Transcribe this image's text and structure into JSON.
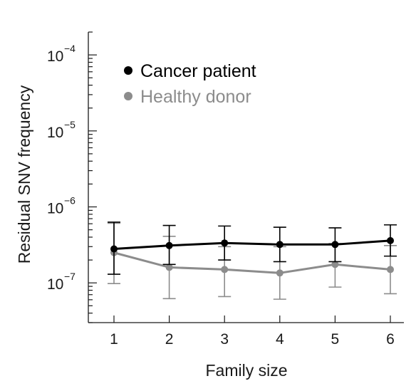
{
  "chart_data": {
    "type": "line",
    "xlabel": "Family size",
    "ylabel": "Residual SNV frequency",
    "y_scale": "log",
    "ylim": [
      3e-08,
      0.0002
    ],
    "x": [
      1,
      2,
      3,
      4,
      5,
      6
    ],
    "xlim": [
      0.5,
      6.5
    ],
    "y_ticks": [
      {
        "base": "10",
        "exp": "−7",
        "value": 1e-07
      },
      {
        "base": "10",
        "exp": "−6",
        "value": 1e-06
      },
      {
        "base": "10",
        "exp": "−5",
        "value": 1e-05
      },
      {
        "base": "10",
        "exp": "−4",
        "value": 0.0001
      }
    ],
    "legend_position": "top-left",
    "grid": false,
    "series": [
      {
        "name": "Cancer patient",
        "color": "#000000",
        "values": [
          2.8e-07,
          3.1e-07,
          3.35e-07,
          3.2e-07,
          3.2e-07,
          3.6e-07
        ],
        "err_low": [
          1.3e-07,
          1.75e-07,
          2e-07,
          1.9e-07,
          1.9e-07,
          2.25e-07
        ],
        "err_high": [
          6.3e-07,
          5.7e-07,
          5.6e-07,
          5.4e-07,
          5.3e-07,
          5.8e-07
        ]
      },
      {
        "name": "Healthy donor",
        "color": "#8c8c8c",
        "values": [
          2.5e-07,
          1.6e-07,
          1.5e-07,
          1.35e-07,
          1.75e-07,
          1.5e-07
        ],
        "err_low": [
          9.8e-08,
          6.2e-08,
          6.6e-08,
          6.1e-08,
          8.8e-08,
          7.2e-08
        ],
        "err_high": [
          6.1e-07,
          4.1e-07,
          3e-07,
          3e-07,
          3.3e-07,
          3.1e-07
        ]
      }
    ]
  }
}
